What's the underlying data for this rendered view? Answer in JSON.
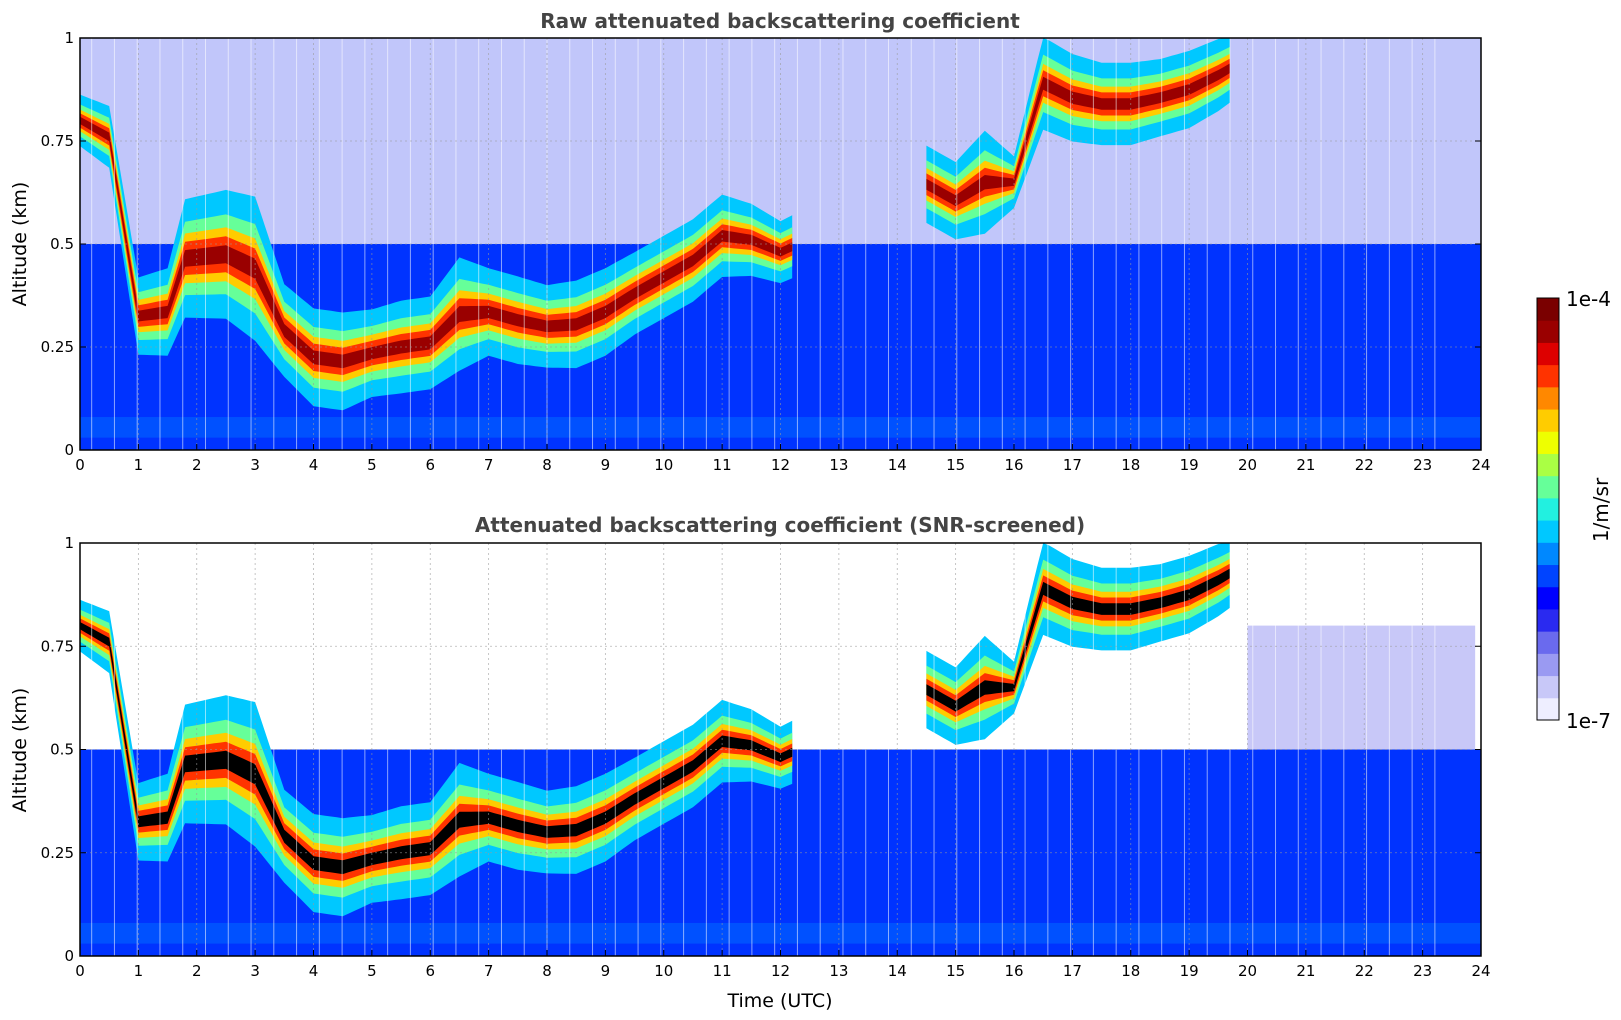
{
  "figure": {
    "xlabel": "Time (UTC)",
    "colorbar": {
      "label": "1/m/sr",
      "max_label": "1e-4",
      "min_label": "1e-7",
      "range": [
        1e-07,
        0.0001
      ],
      "scale": "log",
      "colors": [
        "#eeeeff",
        "#c8c8f8",
        "#9a9af2",
        "#6a6aee",
        "#2a2af0",
        "#0000ff",
        "#0044ff",
        "#0088ff",
        "#00c8ff",
        "#22f0e0",
        "#66ff99",
        "#aaff44",
        "#eeff00",
        "#ffcc00",
        "#ff8800",
        "#ff3300",
        "#dd0000",
        "#9a0000",
        "#7a0000"
      ]
    }
  },
  "chart_data": [
    {
      "type": "heatmap",
      "title": "Raw attenuated backscattering coefficient",
      "xlabel": "",
      "ylabel": "Altitude (km)",
      "xlim": [
        0,
        24
      ],
      "ylim": [
        0,
        1
      ],
      "x_ticks": [
        "0",
        "1",
        "2",
        "3",
        "4",
        "5",
        "6",
        "7",
        "8",
        "9",
        "10",
        "11",
        "12",
        "13",
        "14",
        "15",
        "16",
        "17",
        "18",
        "19",
        "20",
        "21",
        "22",
        "23",
        "24"
      ],
      "y_ticks": [
        "0",
        "0.25",
        "0.5",
        "0.75",
        "1"
      ],
      "grid": true,
      "layer_top_km": [
        [
          0,
          0.85
        ],
        [
          0.5,
          0.82
        ],
        [
          1,
          0.4
        ],
        [
          1.5,
          0.42
        ],
        [
          1.8,
          0.58
        ],
        [
          2.5,
          0.6
        ],
        [
          3,
          0.58
        ],
        [
          3.5,
          0.38
        ],
        [
          4,
          0.32
        ],
        [
          4.5,
          0.31
        ],
        [
          5,
          0.32
        ],
        [
          5.5,
          0.34
        ],
        [
          6,
          0.35
        ],
        [
          6.5,
          0.44
        ],
        [
          7,
          0.42
        ],
        [
          7.5,
          0.4
        ],
        [
          8,
          0.38
        ],
        [
          8.5,
          0.39
        ],
        [
          9,
          0.42
        ],
        [
          9.5,
          0.46
        ],
        [
          10,
          0.5
        ],
        [
          10.5,
          0.54
        ],
        [
          11,
          0.6
        ],
        [
          11.5,
          0.58
        ],
        [
          12,
          0.54
        ],
        [
          14.5,
          0.72
        ],
        [
          15,
          0.68
        ],
        [
          15.5,
          0.75
        ],
        [
          16,
          0.7
        ],
        [
          16.5,
          0.98
        ],
        [
          17,
          0.94
        ],
        [
          17.5,
          0.92
        ],
        [
          18,
          0.92
        ],
        [
          18.5,
          0.93
        ],
        [
          19,
          0.95
        ],
        [
          19.5,
          0.98
        ],
        [
          19.8,
          1.0
        ]
      ],
      "layer_base_km": [
        [
          0,
          0.75
        ],
        [
          0.5,
          0.7
        ],
        [
          1,
          0.25
        ],
        [
          1.5,
          0.25
        ],
        [
          1.8,
          0.35
        ],
        [
          2.5,
          0.35
        ],
        [
          3,
          0.3
        ],
        [
          3.5,
          0.2
        ],
        [
          4,
          0.13
        ],
        [
          4.5,
          0.12
        ],
        [
          5,
          0.15
        ],
        [
          5.5,
          0.16
        ],
        [
          6,
          0.17
        ],
        [
          6.5,
          0.22
        ],
        [
          7,
          0.25
        ],
        [
          7.5,
          0.23
        ],
        [
          8,
          0.22
        ],
        [
          8.5,
          0.22
        ],
        [
          9,
          0.25
        ],
        [
          9.5,
          0.3
        ],
        [
          10,
          0.34
        ],
        [
          10.5,
          0.38
        ],
        [
          11,
          0.44
        ],
        [
          11.5,
          0.44
        ],
        [
          12,
          0.42
        ],
        [
          14.5,
          0.57
        ],
        [
          15,
          0.53
        ],
        [
          15.5,
          0.55
        ],
        [
          16,
          0.6
        ],
        [
          16.5,
          0.8
        ],
        [
          17,
          0.77
        ],
        [
          17.5,
          0.76
        ],
        [
          18,
          0.76
        ],
        [
          18.5,
          0.78
        ],
        [
          19,
          0.8
        ],
        [
          19.5,
          0.84
        ],
        [
          19.8,
          0.87
        ]
      ]
    },
    {
      "type": "heatmap",
      "title": "Attenuated backscattering coefficient (SNR-screened)",
      "xlabel": "Time (UTC)",
      "ylabel": "Altitude (km)",
      "xlim": [
        0,
        24
      ],
      "ylim": [
        0,
        1
      ],
      "x_ticks": [
        "0",
        "1",
        "2",
        "3",
        "4",
        "5",
        "6",
        "7",
        "8",
        "9",
        "10",
        "11",
        "12",
        "13",
        "14",
        "15",
        "16",
        "17",
        "18",
        "19",
        "20",
        "21",
        "22",
        "23",
        "24"
      ],
      "y_ticks": [
        "0",
        "0.25",
        "0.5",
        "0.75",
        "1"
      ],
      "grid": true,
      "screened_value_color": "#000000"
    }
  ]
}
